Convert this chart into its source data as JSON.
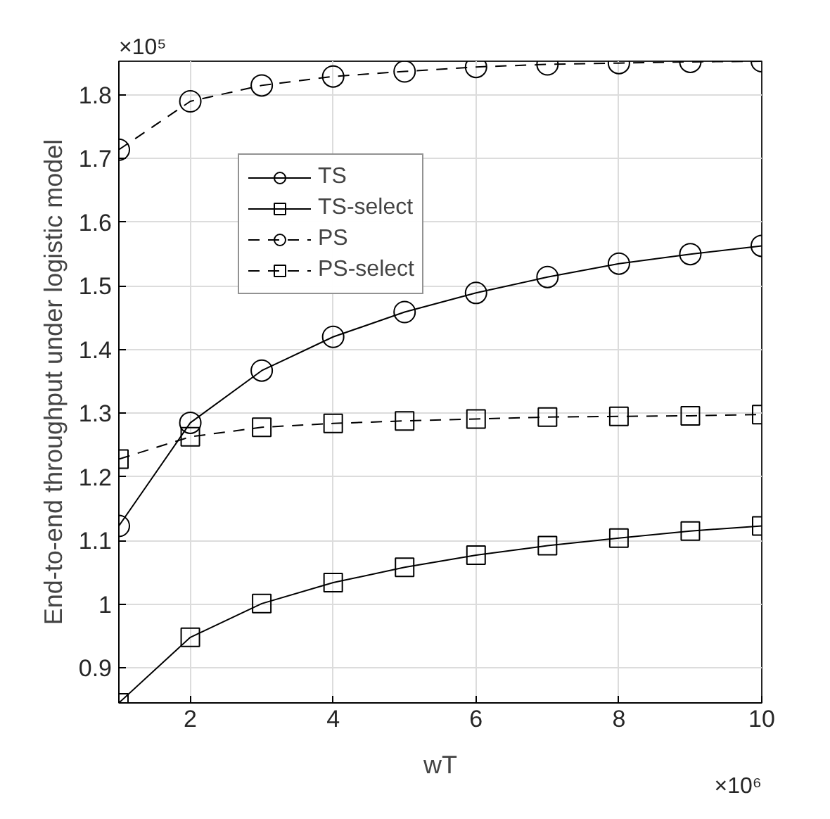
{
  "chart_data": {
    "type": "line",
    "xlabel": "wT",
    "ylabel": "End-to-end throughput under logistic model",
    "annotations": [
      "×10⁵",
      "×10⁶"
    ],
    "x": [
      1,
      2,
      3,
      4,
      5,
      6,
      7,
      8,
      9,
      10
    ],
    "xlim": [
      1,
      10
    ],
    "xticks": [
      2,
      4,
      6,
      8,
      10
    ],
    "ylim": [
      0.845,
      1.853
    ],
    "yticks": [
      0.9,
      1,
      1.1,
      1.2,
      1.3,
      1.4,
      1.5,
      1.6,
      1.7,
      1.8
    ],
    "grid": true,
    "legend": "top left",
    "series": [
      {
        "name": "TS",
        "color": "#000000",
        "marker": "circle",
        "line_style": "solid",
        "values": [
          1.123,
          1.285,
          1.367,
          1.42,
          1.459,
          1.489,
          1.514,
          1.535,
          1.55,
          1.563
        ]
      },
      {
        "name": "TS-select",
        "color": "#000000",
        "marker": "square",
        "line_style": "solid",
        "values": [
          0.845,
          0.948,
          1.001,
          1.034,
          1.058,
          1.077,
          1.092,
          1.104,
          1.115,
          1.123
        ]
      },
      {
        "name": "PS",
        "color": "#000000",
        "marker": "circle",
        "line_style": "dashed",
        "values": [
          1.714,
          1.79,
          1.815,
          1.829,
          1.837,
          1.844,
          1.848,
          1.85,
          1.852,
          1.853
        ]
      },
      {
        "name": "PS-select",
        "color": "#000000",
        "marker": "square",
        "line_style": "dashed",
        "values": [
          1.228,
          1.263,
          1.278,
          1.284,
          1.288,
          1.291,
          1.294,
          1.295,
          1.296,
          1.298
        ]
      }
    ]
  }
}
